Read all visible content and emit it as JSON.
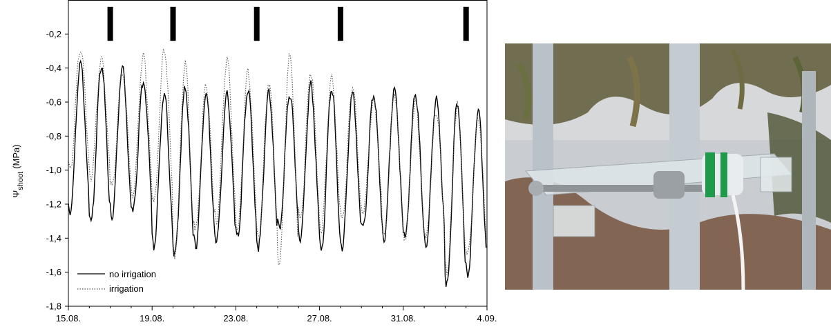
{
  "chart_data": {
    "type": "line",
    "ylabel_symbol": "Ψ",
    "ylabel_subscript": "shoot",
    "ylabel_unit": "(MPa)",
    "xlim": [
      0,
      20
    ],
    "ylim": [
      -1.8,
      0
    ],
    "x_tick_values": [
      0,
      4,
      8,
      12,
      16,
      20
    ],
    "x_tick_labels": [
      "15.08.",
      "19.08.",
      "23.08.",
      "27.08.",
      "31.08.",
      "4.09."
    ],
    "y_tick_values": [
      -1.8,
      -1.6,
      -1.4,
      -1.2,
      -1.0,
      -0.8,
      -0.6,
      -0.4,
      -0.2
    ],
    "y_tick_labels": [
      "-1,8",
      "-1,6",
      "-1,4",
      "-1,2",
      "-1,0",
      "-0,8",
      "-0,6",
      "-0,4",
      "-0,2"
    ],
    "grid": false,
    "legend_position": "bottom-left",
    "irrigation_events_x": [
      2.0,
      5.0,
      9.0,
      13.0,
      19.0
    ],
    "series": [
      {
        "name": "no irrigation",
        "style": "solid",
        "color": "#000000",
        "daily_max": [
          -0.38,
          -0.38,
          -0.4,
          -0.48,
          -0.55,
          -0.52,
          -0.55,
          -0.55,
          -0.52,
          -0.55,
          -0.55,
          -0.5,
          -0.52,
          -0.55,
          -0.55,
          -0.52,
          -0.55,
          -0.58,
          -0.6,
          -0.65
        ],
        "daily_min": [
          -1.25,
          -1.3,
          -1.28,
          -1.25,
          -1.45,
          -1.5,
          -1.45,
          -1.42,
          -1.4,
          -1.45,
          -1.35,
          -1.4,
          -1.48,
          -1.45,
          -1.35,
          -1.4,
          -1.4,
          -1.45,
          -1.68,
          -1.62
        ]
      },
      {
        "name": "irrigation",
        "style": "dotted",
        "color": "#555555",
        "daily_max": [
          -0.28,
          -0.35,
          -0.42,
          -0.33,
          -0.3,
          -0.38,
          -0.5,
          -0.35,
          -0.42,
          -0.48,
          -0.32,
          -0.42,
          -0.45,
          -0.5,
          -0.6,
          -0.55,
          -0.6,
          -0.65,
          -0.62,
          -0.7
        ],
        "daily_min": [
          -1.0,
          -1.05,
          -1.1,
          -1.15,
          -1.2,
          -1.5,
          -1.35,
          -1.3,
          -1.35,
          -1.4,
          -1.55,
          -1.3,
          -1.35,
          -1.3,
          -1.25,
          -1.4,
          -1.4,
          -1.4,
          -1.6,
          -1.5
        ]
      }
    ]
  },
  "photo": {
    "description_icon": "sap-flow-sensor-photo-icon",
    "colors": {
      "sky": "#c9ccd0",
      "trunk": "#c4ccd2",
      "foliage": "#6a6a40",
      "green_band": "#1f9a4a"
    }
  }
}
